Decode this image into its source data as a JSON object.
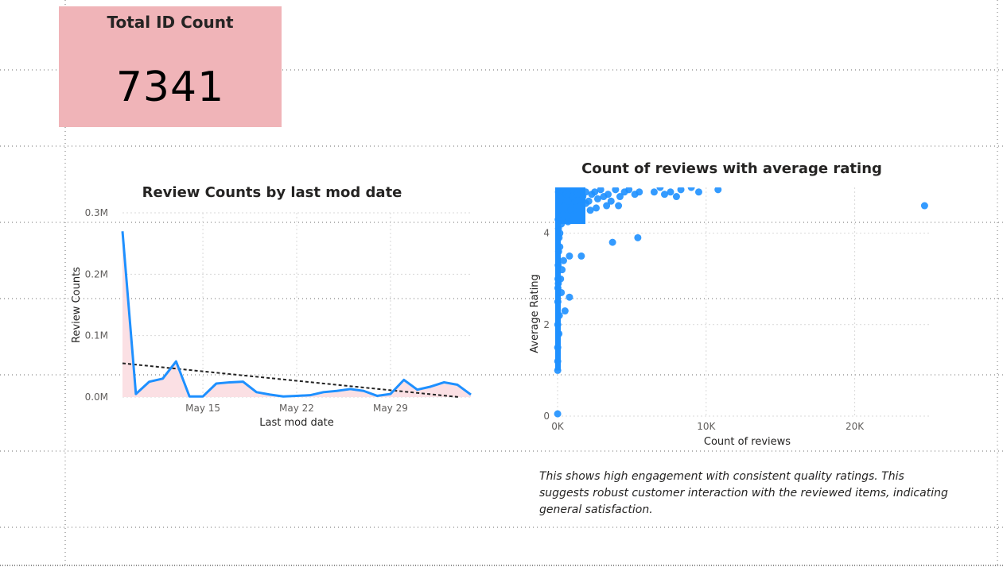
{
  "kpi_card": {
    "title": "Total ID Count",
    "value": "7341",
    "background": "#f0b4b8"
  },
  "narrative": {
    "text": "This shows high engagement with consistent quality ratings.  This suggests robust customer interaction with the reviewed items, indicating general satisfaction."
  },
  "colors": {
    "series": "#1e90ff",
    "area_fill": "#fbe0e4",
    "trend": "#222222",
    "grid": "#d9d9d9",
    "axis_text": "#605e5c"
  },
  "chart_data": [
    {
      "type": "line",
      "title": "Review Counts by last mod date",
      "xlabel": "Last mod date",
      "ylabel": "Review Counts",
      "x_ticks": [
        "May 15",
        "May 22",
        "May 29"
      ],
      "y_ticks": [
        "0.0M",
        "0.1M",
        "0.2M",
        "0.3M"
      ],
      "ylim": [
        0,
        300000
      ],
      "x_start_date": "May 9",
      "series": [
        {
          "values": [
            270000,
            5000,
            25000,
            30000,
            58000,
            1000,
            1000,
            22000,
            24000,
            25000,
            8000,
            4000,
            1000,
            2000,
            3000,
            8000,
            10000,
            13000,
            10000,
            2000,
            5000,
            28000,
            12000,
            17000,
            24000,
            20000,
            4000
          ]
        }
      ],
      "trendline": {
        "start": 55000,
        "end": -2000
      },
      "area_under_line": true,
      "grid": true
    },
    {
      "type": "scatter",
      "title": "Count of reviews with average rating",
      "xlabel": "Count of reviews",
      "ylabel": "Average Rating",
      "x_ticks": [
        "0K",
        "10K",
        "20K"
      ],
      "y_ticks": [
        "0",
        "2",
        "4"
      ],
      "xlim": [
        0,
        25000
      ],
      "ylim": [
        0,
        5
      ],
      "grid": true,
      "points": [
        [
          24700,
          4.6
        ],
        [
          10800,
          4.95
        ],
        [
          9500,
          4.9
        ],
        [
          9000,
          5.0
        ],
        [
          8300,
          4.95
        ],
        [
          8000,
          4.8
        ],
        [
          7600,
          4.9
        ],
        [
          7200,
          4.85
        ],
        [
          6900,
          5.0
        ],
        [
          6500,
          4.9
        ],
        [
          5500,
          4.9
        ],
        [
          5200,
          4.85
        ],
        [
          4800,
          4.95
        ],
        [
          4500,
          4.9
        ],
        [
          4200,
          4.8
        ],
        [
          3900,
          4.95
        ],
        [
          3600,
          4.7
        ],
        [
          3400,
          4.85
        ],
        [
          3100,
          4.8
        ],
        [
          2900,
          4.95
        ],
        [
          2700,
          4.75
        ],
        [
          2500,
          4.9
        ],
        [
          2300,
          4.85
        ],
        [
          2100,
          4.7
        ],
        [
          1900,
          4.9
        ],
        [
          1700,
          4.8
        ],
        [
          1500,
          4.95
        ],
        [
          1400,
          4.6
        ],
        [
          1300,
          4.85
        ],
        [
          1200,
          4.7
        ],
        [
          1100,
          4.9
        ],
        [
          1000,
          4.8
        ],
        [
          900,
          4.5
        ],
        [
          800,
          4.95
        ],
        [
          700,
          4.7
        ],
        [
          600,
          4.85
        ],
        [
          500,
          4.6
        ],
        [
          400,
          4.9
        ],
        [
          350,
          4.4
        ],
        [
          300,
          4.8
        ],
        [
          250,
          4.2
        ],
        [
          200,
          4.95
        ],
        [
          150,
          4.0
        ],
        [
          120,
          4.7
        ],
        [
          100,
          4.85
        ],
        [
          80,
          4.5
        ],
        [
          60,
          4.9
        ],
        [
          40,
          4.3
        ],
        [
          5400,
          3.9
        ],
        [
          3700,
          3.8
        ],
        [
          1600,
          3.5
        ],
        [
          800,
          3.5
        ],
        [
          800,
          2.6
        ],
        [
          400,
          3.4
        ],
        [
          300,
          3.2
        ],
        [
          200,
          3.0
        ],
        [
          150,
          3.7
        ],
        [
          100,
          3.9
        ],
        [
          60,
          4.1
        ],
        [
          40,
          3.3
        ],
        [
          30,
          3.0
        ],
        [
          25,
          2.8
        ],
        [
          20,
          2.5
        ],
        [
          15,
          2.0
        ],
        [
          10,
          1.5
        ],
        [
          10,
          1.2
        ],
        [
          8,
          1.0
        ],
        [
          5,
          0.05
        ],
        [
          500,
          2.3
        ],
        [
          250,
          2.7
        ],
        [
          120,
          2.2
        ],
        [
          90,
          1.8
        ],
        [
          70,
          3.6
        ],
        [
          50,
          2.9
        ],
        [
          4100,
          4.6
        ],
        [
          2600,
          4.55
        ],
        [
          1900,
          4.65
        ],
        [
          3300,
          4.6
        ],
        [
          2200,
          4.5
        ],
        [
          1100,
          4.4
        ],
        [
          700,
          4.25
        ]
      ]
    }
  ]
}
